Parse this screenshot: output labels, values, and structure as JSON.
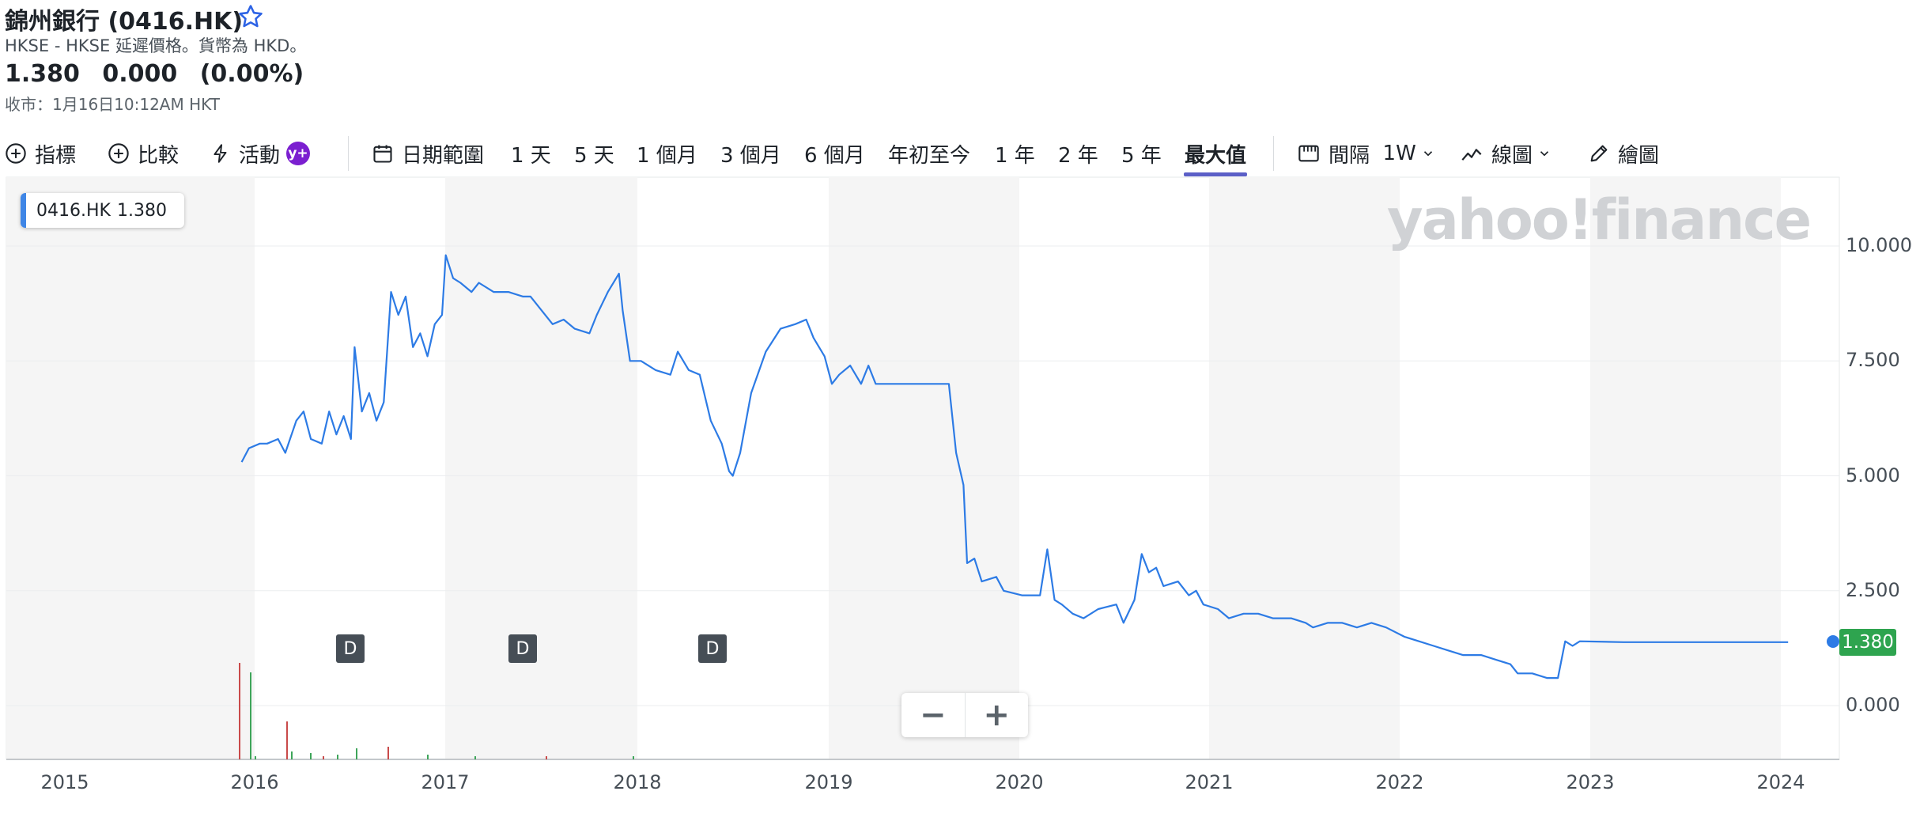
{
  "header": {
    "title": "錦州銀行 (0416.HK)",
    "subtitle": "HKSE - HKSE 延遲價格。貨幣為 HKD。",
    "price": "1.380",
    "change": "0.000",
    "change_pct": "(0.00%)",
    "close_info": "收市：1月16日10:12AM HKT"
  },
  "toolbar": {
    "indicators": "指標",
    "compare": "比較",
    "events": "活動",
    "events_badge": "y+",
    "date_range": "日期範圍",
    "ranges": [
      "1 天",
      "5 天",
      "1 個月",
      "3 個月",
      "6 個月",
      "年初至今",
      "1 年",
      "2 年",
      "5 年",
      "最大值"
    ],
    "active_range": "最大值",
    "interval": "間隔",
    "interval_value": "1W",
    "chart_type": "線圖",
    "draw": "繪圖"
  },
  "legend": {
    "symbol": "0416.HK",
    "value": "1.380"
  },
  "watermark": "yahoo!finance",
  "last_price_tag": "1.380",
  "event_marker": "D",
  "zoom": {
    "out": "−",
    "in": "+"
  },
  "colors": {
    "line": "#2d7be5",
    "accent": "#5b5fc7",
    "last_price": "#2ea44f",
    "premium": "#7b1fd0"
  },
  "chart_data": {
    "type": "line",
    "title": "",
    "xlabel": "",
    "ylabel": "",
    "x_ticks": [
      "2015",
      "2016",
      "2017",
      "2018",
      "2019",
      "2020",
      "2021",
      "2022",
      "2023",
      "2024"
    ],
    "y_ticks": [
      "0.000",
      "2.500",
      "5.000",
      "7.500",
      "10.000"
    ],
    "ylim": [
      -1.2,
      11.5
    ],
    "xlim": [
      "2014-09-01",
      "2024-05-01"
    ],
    "dividend_markers": [
      "2016-06",
      "2017-05",
      "2018-05"
    ],
    "series": [
      {
        "values": [
          [
            "2015-12-07",
            5.3
          ],
          [
            "2015-12-21",
            5.6
          ],
          [
            "2016-01-11",
            5.7
          ],
          [
            "2016-01-25",
            5.7
          ],
          [
            "2016-02-15",
            5.8
          ],
          [
            "2016-02-29",
            5.5
          ],
          [
            "2016-03-21",
            6.2
          ],
          [
            "2016-04-04",
            6.4
          ],
          [
            "2016-04-18",
            5.8
          ],
          [
            "2016-05-09",
            5.7
          ],
          [
            "2016-05-23",
            6.4
          ],
          [
            "2016-06-06",
            5.9
          ],
          [
            "2016-06-20",
            6.3
          ],
          [
            "2016-07-04",
            5.8
          ],
          [
            "2016-07-11",
            7.8
          ],
          [
            "2016-07-25",
            6.4
          ],
          [
            "2016-08-08",
            6.8
          ],
          [
            "2016-08-22",
            6.2
          ],
          [
            "2016-09-05",
            6.6
          ],
          [
            "2016-09-19",
            9.0
          ],
          [
            "2016-10-03",
            8.5
          ],
          [
            "2016-10-17",
            8.9
          ],
          [
            "2016-10-31",
            7.8
          ],
          [
            "2016-11-14",
            8.1
          ],
          [
            "2016-11-28",
            7.6
          ],
          [
            "2016-12-12",
            8.3
          ],
          [
            "2016-12-26",
            8.5
          ],
          [
            "2017-01-02",
            9.8
          ],
          [
            "2017-01-16",
            9.3
          ],
          [
            "2017-01-30",
            9.2
          ],
          [
            "2017-02-20",
            9.0
          ],
          [
            "2017-03-06",
            9.2
          ],
          [
            "2017-04-03",
            9.0
          ],
          [
            "2017-05-01",
            9.0
          ],
          [
            "2017-05-29",
            8.9
          ],
          [
            "2017-06-12",
            8.9
          ],
          [
            "2017-07-03",
            8.6
          ],
          [
            "2017-07-24",
            8.3
          ],
          [
            "2017-08-14",
            8.4
          ],
          [
            "2017-09-04",
            8.2
          ],
          [
            "2017-10-02",
            8.1
          ],
          [
            "2017-10-16",
            8.5
          ],
          [
            "2017-11-06",
            9.0
          ],
          [
            "2017-11-27",
            9.4
          ],
          [
            "2017-12-04",
            8.6
          ],
          [
            "2017-12-18",
            7.5
          ],
          [
            "2018-01-08",
            7.5
          ],
          [
            "2018-02-05",
            7.3
          ],
          [
            "2018-03-05",
            7.2
          ],
          [
            "2018-03-19",
            7.7
          ],
          [
            "2018-04-09",
            7.3
          ],
          [
            "2018-04-30",
            7.2
          ],
          [
            "2018-05-21",
            6.2
          ],
          [
            "2018-06-11",
            5.7
          ],
          [
            "2018-06-25",
            5.1
          ],
          [
            "2018-07-02",
            5.0
          ],
          [
            "2018-07-16",
            5.5
          ],
          [
            "2018-08-06",
            6.8
          ],
          [
            "2018-09-03",
            7.7
          ],
          [
            "2018-10-01",
            8.2
          ],
          [
            "2018-10-29",
            8.3
          ],
          [
            "2018-11-19",
            8.4
          ],
          [
            "2018-12-03",
            8.0
          ],
          [
            "2018-12-24",
            7.6
          ],
          [
            "2019-01-07",
            7.0
          ],
          [
            "2019-01-21",
            7.2
          ],
          [
            "2019-02-11",
            7.4
          ],
          [
            "2019-03-04",
            7.0
          ],
          [
            "2019-03-18",
            7.4
          ],
          [
            "2019-04-01",
            7.0
          ],
          [
            "2019-08-19",
            7.0
          ],
          [
            "2019-09-02",
            5.5
          ],
          [
            "2019-09-16",
            4.8
          ],
          [
            "2019-09-23",
            3.1
          ],
          [
            "2019-10-07",
            3.2
          ],
          [
            "2019-10-21",
            2.7
          ],
          [
            "2019-11-18",
            2.8
          ],
          [
            "2019-12-02",
            2.5
          ],
          [
            "2020-01-06",
            2.4
          ],
          [
            "2020-02-10",
            2.4
          ],
          [
            "2020-02-24",
            3.4
          ],
          [
            "2020-03-09",
            2.3
          ],
          [
            "2020-03-23",
            2.2
          ],
          [
            "2020-04-13",
            2.0
          ],
          [
            "2020-05-04",
            1.9
          ],
          [
            "2020-06-01",
            2.1
          ],
          [
            "2020-07-06",
            2.2
          ],
          [
            "2020-07-20",
            1.8
          ],
          [
            "2020-08-10",
            2.3
          ],
          [
            "2020-08-24",
            3.3
          ],
          [
            "2020-09-07",
            2.9
          ],
          [
            "2020-09-21",
            3.0
          ],
          [
            "2020-10-05",
            2.6
          ],
          [
            "2020-11-02",
            2.7
          ],
          [
            "2020-11-23",
            2.4
          ],
          [
            "2020-12-07",
            2.5
          ],
          [
            "2020-12-21",
            2.2
          ],
          [
            "2021-01-18",
            2.1
          ],
          [
            "2021-02-08",
            1.9
          ],
          [
            "2021-03-08",
            2.0
          ],
          [
            "2021-04-05",
            2.0
          ],
          [
            "2021-05-03",
            1.9
          ],
          [
            "2021-06-07",
            1.9
          ],
          [
            "2021-07-05",
            1.8
          ],
          [
            "2021-07-19",
            1.7
          ],
          [
            "2021-08-16",
            1.8
          ],
          [
            "2021-09-13",
            1.8
          ],
          [
            "2021-10-11",
            1.7
          ],
          [
            "2021-11-08",
            1.8
          ],
          [
            "2021-12-06",
            1.7
          ],
          [
            "2022-01-10",
            1.5
          ],
          [
            "2022-02-07",
            1.4
          ],
          [
            "2022-03-07",
            1.3
          ],
          [
            "2022-04-04",
            1.2
          ],
          [
            "2022-05-02",
            1.1
          ],
          [
            "2022-06-06",
            1.1
          ],
          [
            "2022-07-04",
            1.0
          ],
          [
            "2022-08-01",
            0.9
          ],
          [
            "2022-08-15",
            0.7
          ],
          [
            "2022-09-12",
            0.7
          ],
          [
            "2022-10-10",
            0.6
          ],
          [
            "2022-10-31",
            0.6
          ],
          [
            "2022-11-14",
            1.4
          ],
          [
            "2022-11-28",
            1.3
          ],
          [
            "2022-12-12",
            1.4
          ],
          [
            "2023-03-06",
            1.38
          ],
          [
            "2024-01-15",
            1.38
          ]
        ]
      }
    ]
  }
}
